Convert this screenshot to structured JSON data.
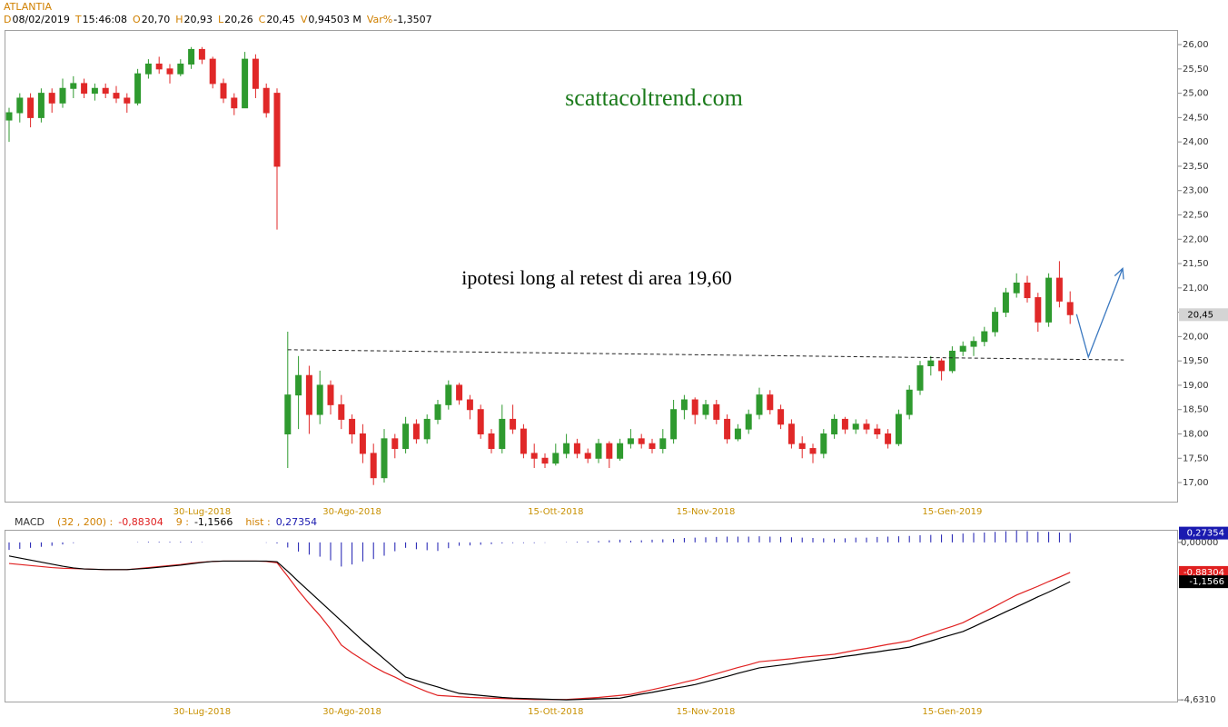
{
  "header": {
    "title": "ATLANTIA",
    "fields": [
      {
        "key": "D",
        "value": "08/02/2019"
      },
      {
        "key": "T",
        "value": "15:46:08"
      },
      {
        "key": "O",
        "value": "20,70"
      },
      {
        "key": "H",
        "value": "20,93"
      },
      {
        "key": "L",
        "value": "20,26"
      },
      {
        "key": "C",
        "value": "20,45"
      },
      {
        "key": "V",
        "value": "0,94503 M"
      },
      {
        "key": "Var%",
        "value": "-1,3507"
      }
    ]
  },
  "chart_data": [
    {
      "type": "candlestick",
      "up_color": "#2f9a2f",
      "down_color": "#e02828",
      "ylim": [
        16.59,
        26.3
      ],
      "yticks": [
        {
          "value": 17,
          "label": "17,00"
        },
        {
          "value": 17.5,
          "label": "17,50"
        },
        {
          "value": 18,
          "label": "18,00"
        },
        {
          "value": 18.5,
          "label": "18,50"
        },
        {
          "value": 19,
          "label": "19,00"
        },
        {
          "value": 19.5,
          "label": "19,50"
        },
        {
          "value": 20,
          "label": "20,00"
        },
        {
          "value": 20.5,
          "label": "20,50"
        },
        {
          "value": 21,
          "label": "21,00"
        },
        {
          "value": 21.5,
          "label": "21,50"
        },
        {
          "value": 22,
          "label": "22,00"
        },
        {
          "value": 22.5,
          "label": "22,50"
        },
        {
          "value": 23,
          "label": "23,00"
        },
        {
          "value": 23.5,
          "label": "23,50"
        },
        {
          "value": 24,
          "label": "24,00"
        },
        {
          "value": 24.5,
          "label": "24,50"
        },
        {
          "value": 25,
          "label": "25,00"
        },
        {
          "value": 25.5,
          "label": "25,50"
        },
        {
          "value": 26,
          "label": "26,00"
        }
      ],
      "categories": [
        null,
        null,
        null,
        null,
        null,
        null,
        null,
        null,
        null,
        null,
        null,
        null,
        null,
        null,
        null,
        null,
        null,
        null,
        "30-Lug-2018",
        null,
        null,
        null,
        null,
        null,
        null,
        null,
        null,
        null,
        null,
        null,
        null,
        null,
        "30-Ago-2018",
        null,
        null,
        null,
        null,
        null,
        null,
        null,
        null,
        null,
        null,
        null,
        null,
        null,
        null,
        null,
        null,
        null,
        null,
        "15-Ott-2018",
        null,
        null,
        null,
        null,
        null,
        null,
        null,
        null,
        null,
        null,
        null,
        null,
        null,
        "15-Nov-2018",
        null,
        null,
        null,
        null,
        null,
        null,
        null,
        null,
        null,
        null,
        null,
        null,
        null,
        null,
        null,
        null,
        null,
        null,
        null,
        null,
        null,
        null,
        "15-Gen-2019",
        null,
        null,
        null,
        null,
        null,
        null,
        null,
        null,
        null,
        null,
        null
      ],
      "ohlc": [
        [
          24.45,
          24.7,
          24.0,
          24.6
        ],
        [
          24.6,
          25.0,
          24.4,
          24.9
        ],
        [
          24.9,
          25.0,
          24.3,
          24.5
        ],
        [
          24.5,
          25.1,
          24.4,
          25.0
        ],
        [
          25.0,
          25.1,
          24.6,
          24.8
        ],
        [
          24.8,
          25.3,
          24.7,
          25.1
        ],
        [
          25.1,
          25.35,
          24.9,
          25.2
        ],
        [
          25.2,
          25.3,
          24.9,
          25.0
        ],
        [
          25.0,
          25.2,
          24.85,
          25.1
        ],
        [
          25.1,
          25.2,
          24.9,
          25.0
        ],
        [
          25.0,
          25.15,
          24.8,
          24.9
        ],
        [
          24.9,
          25.0,
          24.6,
          24.8
        ],
        [
          24.8,
          25.5,
          24.75,
          25.4
        ],
        [
          25.4,
          25.7,
          25.3,
          25.6
        ],
        [
          25.6,
          25.75,
          25.4,
          25.5
        ],
        [
          25.5,
          25.6,
          25.2,
          25.4
        ],
        [
          25.4,
          25.7,
          25.35,
          25.6
        ],
        [
          25.6,
          25.95,
          25.5,
          25.9
        ],
        [
          25.9,
          25.95,
          25.6,
          25.7
        ],
        [
          25.7,
          25.75,
          25.1,
          25.2
        ],
        [
          25.2,
          25.3,
          24.8,
          24.9
        ],
        [
          24.9,
          25.0,
          24.55,
          24.7
        ],
        [
          24.7,
          25.85,
          24.7,
          25.7
        ],
        [
          25.7,
          25.8,
          24.9,
          25.1
        ],
        [
          25.1,
          25.2,
          24.5,
          24.6
        ],
        [
          25.0,
          25.1,
          22.2,
          23.5
        ],
        [
          18.0,
          20.1,
          17.3,
          18.8
        ],
        [
          18.8,
          19.6,
          18.1,
          19.2
        ],
        [
          19.2,
          19.4,
          18.0,
          18.4
        ],
        [
          18.4,
          19.3,
          18.2,
          19.0
        ],
        [
          19.0,
          19.1,
          18.4,
          18.6
        ],
        [
          18.6,
          18.8,
          18.1,
          18.3
        ],
        [
          18.3,
          18.4,
          17.8,
          18.0
        ],
        [
          18.0,
          18.2,
          17.4,
          17.6
        ],
        [
          17.6,
          17.8,
          16.95,
          17.1
        ],
        [
          17.1,
          18.1,
          17.0,
          17.9
        ],
        [
          17.9,
          18.0,
          17.5,
          17.7
        ],
        [
          17.7,
          18.35,
          17.6,
          18.2
        ],
        [
          18.2,
          18.3,
          17.8,
          17.9
        ],
        [
          17.9,
          18.4,
          17.8,
          18.3
        ],
        [
          18.3,
          18.7,
          18.2,
          18.6
        ],
        [
          18.6,
          19.1,
          18.5,
          19.0
        ],
        [
          19.0,
          19.05,
          18.6,
          18.7
        ],
        [
          18.7,
          18.8,
          18.3,
          18.5
        ],
        [
          18.5,
          18.6,
          17.9,
          18.0
        ],
        [
          18.0,
          18.1,
          17.6,
          17.7
        ],
        [
          17.7,
          18.6,
          17.6,
          18.3
        ],
        [
          18.3,
          18.6,
          18.0,
          18.1
        ],
        [
          18.1,
          18.2,
          17.5,
          17.6
        ],
        [
          17.6,
          17.8,
          17.3,
          17.5
        ],
        [
          17.5,
          17.6,
          17.3,
          17.4
        ],
        [
          17.4,
          17.8,
          17.35,
          17.6
        ],
        [
          17.6,
          18.0,
          17.5,
          17.8
        ],
        [
          17.8,
          17.9,
          17.5,
          17.6
        ],
        [
          17.6,
          17.7,
          17.4,
          17.5
        ],
        [
          17.5,
          17.9,
          17.4,
          17.8
        ],
        [
          17.8,
          17.85,
          17.3,
          17.5
        ],
        [
          17.5,
          17.9,
          17.45,
          17.8
        ],
        [
          17.8,
          18.1,
          17.7,
          17.9
        ],
        [
          17.9,
          18.0,
          17.7,
          17.8
        ],
        [
          17.8,
          17.9,
          17.6,
          17.7
        ],
        [
          17.7,
          18.1,
          17.6,
          17.9
        ],
        [
          17.9,
          18.7,
          17.8,
          18.5
        ],
        [
          18.5,
          18.8,
          18.3,
          18.7
        ],
        [
          18.7,
          18.75,
          18.2,
          18.4
        ],
        [
          18.4,
          18.7,
          18.3,
          18.6
        ],
        [
          18.6,
          18.7,
          18.2,
          18.3
        ],
        [
          18.3,
          18.4,
          17.8,
          17.9
        ],
        [
          17.9,
          18.2,
          17.85,
          18.1
        ],
        [
          18.1,
          18.5,
          18.0,
          18.4
        ],
        [
          18.4,
          18.95,
          18.3,
          18.8
        ],
        [
          18.8,
          18.9,
          18.4,
          18.5
        ],
        [
          18.5,
          18.6,
          18.1,
          18.2
        ],
        [
          18.2,
          18.3,
          17.7,
          17.8
        ],
        [
          17.8,
          17.95,
          17.5,
          17.7
        ],
        [
          17.7,
          17.8,
          17.4,
          17.6
        ],
        [
          17.6,
          18.1,
          17.5,
          18.0
        ],
        [
          18.0,
          18.4,
          17.9,
          18.3
        ],
        [
          18.3,
          18.35,
          18.0,
          18.1
        ],
        [
          18.1,
          18.3,
          18.0,
          18.2
        ],
        [
          18.2,
          18.3,
          18.0,
          18.1
        ],
        [
          18.1,
          18.2,
          17.9,
          18.0
        ],
        [
          18.0,
          18.1,
          17.7,
          17.8
        ],
        [
          17.8,
          18.5,
          17.75,
          18.4
        ],
        [
          18.4,
          19.0,
          18.3,
          18.9
        ],
        [
          18.9,
          19.5,
          18.8,
          19.4
        ],
        [
          19.4,
          19.6,
          19.2,
          19.5
        ],
        [
          19.5,
          19.55,
          19.1,
          19.3
        ],
        [
          19.3,
          19.8,
          19.25,
          19.7
        ],
        [
          19.7,
          19.9,
          19.6,
          19.8
        ],
        [
          19.8,
          20.0,
          19.6,
          19.9
        ],
        [
          19.9,
          20.2,
          19.8,
          20.1
        ],
        [
          20.1,
          20.6,
          20.0,
          20.5
        ],
        [
          20.5,
          21.0,
          20.4,
          20.9
        ],
        [
          20.9,
          21.3,
          20.8,
          21.1
        ],
        [
          21.1,
          21.25,
          20.7,
          20.8
        ],
        [
          20.8,
          20.9,
          20.1,
          20.3
        ],
        [
          20.3,
          21.3,
          20.2,
          21.2
        ],
        [
          21.2,
          21.55,
          20.6,
          20.73
        ],
        [
          20.7,
          20.93,
          20.26,
          20.45
        ]
      ],
      "price_marker": {
        "value": 20.45,
        "label": "20,45"
      },
      "annotations": [
        "scattacoltrend.com",
        "ipotesi long al retest di area 19,60"
      ],
      "support_line": {
        "x": [
          26,
          104
        ],
        "y": [
          19.73,
          19.52
        ]
      },
      "arrow": {
        "x": [
          99.6,
          100.7,
          103.9
        ],
        "y": [
          20.46,
          19.58,
          21.4
        ]
      }
    },
    {
      "type": "macd",
      "title": "MACD",
      "ylim": [
        -4.68,
        0.37
      ],
      "yticks": [
        {
          "value": 0,
          "label": "0,00000"
        },
        {
          "value": -4.631,
          "label": "-4,6310"
        }
      ],
      "series": [
        {
          "name": "(32 , 200) :",
          "color": "#e02020",
          "kind": "line",
          "last_value_label": "-0,88304",
          "values": [
            -0.62,
            -0.65,
            -0.68,
            -0.71,
            -0.74,
            -0.76,
            -0.77,
            -0.78,
            -0.79,
            -0.8,
            -0.8,
            -0.8,
            -0.77,
            -0.74,
            -0.71,
            -0.68,
            -0.65,
            -0.61,
            -0.58,
            -0.56,
            -0.55,
            -0.55,
            -0.55,
            -0.55,
            -0.56,
            -0.6,
            -1.0,
            -1.42,
            -1.8,
            -2.15,
            -2.55,
            -3.02,
            -3.25,
            -3.45,
            -3.65,
            -3.82,
            -3.96,
            -4.12,
            -4.26,
            -4.39,
            -4.5,
            -4.52,
            -4.54,
            -4.56,
            -4.57,
            -4.58,
            -4.59,
            -4.6,
            -4.61,
            -4.62,
            -4.62,
            -4.62,
            -4.62,
            -4.6,
            -4.58,
            -4.56,
            -4.53,
            -4.5,
            -4.47,
            -4.4,
            -4.33,
            -4.26,
            -4.19,
            -4.11,
            -4.04,
            -3.95,
            -3.86,
            -3.77,
            -3.68,
            -3.6,
            -3.51,
            -3.48,
            -3.45,
            -3.42,
            -3.38,
            -3.35,
            -3.32,
            -3.29,
            -3.23,
            -3.17,
            -3.12,
            -3.06,
            -3.0,
            -2.95,
            -2.89,
            -2.78,
            -2.68,
            -2.57,
            -2.47,
            -2.36,
            -2.2,
            -2.04,
            -1.88,
            -1.71,
            -1.55,
            -1.42,
            -1.29,
            -1.15,
            -1.02,
            -0.88304
          ]
        },
        {
          "name": "9 :",
          "color": "#000000",
          "kind": "line",
          "last_value_label": "-1,1566",
          "values": [
            -0.4,
            -0.46,
            -0.52,
            -0.58,
            -0.64,
            -0.7,
            -0.75,
            -0.78,
            -0.79,
            -0.8,
            -0.8,
            -0.8,
            -0.78,
            -0.76,
            -0.73,
            -0.7,
            -0.67,
            -0.63,
            -0.59,
            -0.56,
            -0.55,
            -0.55,
            -0.55,
            -0.55,
            -0.55,
            -0.57,
            -0.85,
            -1.15,
            -1.44,
            -1.73,
            -2.02,
            -2.31,
            -2.6,
            -2.89,
            -3.16,
            -3.43,
            -3.7,
            -3.96,
            -4.06,
            -4.16,
            -4.25,
            -4.35,
            -4.44,
            -4.47,
            -4.5,
            -4.53,
            -4.56,
            -4.58,
            -4.59,
            -4.6,
            -4.61,
            -4.62,
            -4.63,
            -4.62,
            -4.61,
            -4.6,
            -4.59,
            -4.58,
            -4.52,
            -4.46,
            -4.41,
            -4.35,
            -4.29,
            -4.24,
            -4.18,
            -4.1,
            -4.02,
            -3.94,
            -3.85,
            -3.77,
            -3.69,
            -3.65,
            -3.61,
            -3.57,
            -3.52,
            -3.48,
            -3.44,
            -3.4,
            -3.35,
            -3.31,
            -3.26,
            -3.22,
            -3.17,
            -3.13,
            -3.08,
            -2.99,
            -2.9,
            -2.8,
            -2.71,
            -2.62,
            -2.48,
            -2.33,
            -2.19,
            -2.04,
            -1.9,
            -1.75,
            -1.6,
            -1.46,
            -1.31,
            -1.1566
          ]
        },
        {
          "name": "hist :",
          "color": "#1a1ab0",
          "kind": "histogram",
          "last_value_label": "0,27354",
          "values": [
            -0.22,
            -0.19,
            -0.16,
            -0.13,
            -0.1,
            -0.06,
            -0.02,
            0,
            0,
            0,
            0,
            0,
            0.01,
            0.02,
            0.02,
            0.02,
            0.02,
            0.02,
            0.01,
            0,
            0,
            0,
            0,
            0,
            -0.01,
            -0.03,
            -0.15,
            -0.27,
            -0.36,
            -0.42,
            -0.53,
            -0.71,
            -0.65,
            -0.56,
            -0.49,
            -0.39,
            -0.26,
            -0.16,
            -0.2,
            -0.23,
            -0.25,
            -0.17,
            -0.1,
            -0.09,
            -0.07,
            -0.05,
            -0.03,
            -0.02,
            -0.02,
            -0.02,
            -0.01,
            0,
            0.01,
            0.02,
            0.03,
            0.04,
            0.06,
            0.08,
            0.05,
            0.06,
            0.08,
            0.09,
            0.1,
            0.13,
            0.14,
            0.15,
            0.16,
            0.17,
            0.17,
            0.17,
            0.18,
            0.17,
            0.16,
            0.15,
            0.14,
            0.13,
            0.12,
            0.11,
            0.12,
            0.14,
            0.14,
            0.16,
            0.17,
            0.18,
            0.19,
            0.21,
            0.22,
            0.23,
            0.24,
            0.26,
            0.28,
            0.29,
            0.31,
            0.33,
            0.35,
            0.33,
            0.31,
            0.31,
            0.29,
            0.27354
          ]
        }
      ]
    }
  ]
}
